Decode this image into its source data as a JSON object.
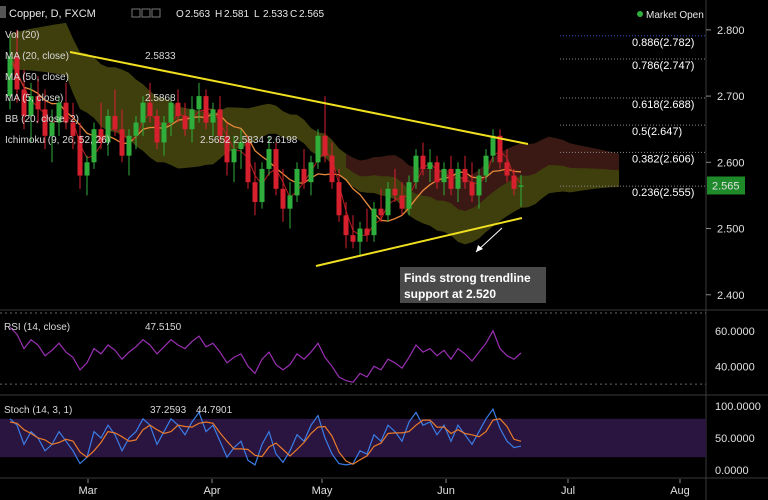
{
  "header": {
    "symbol": "Copper, D, FXCM",
    "ohlc": {
      "o": "2.563",
      "h": "2.581",
      "l": "2.533",
      "c": "2.565"
    },
    "market_status": "Market Open"
  },
  "indicator_labels": [
    {
      "label": "Vol (20)",
      "value": ""
    },
    {
      "label": "MA (20, close)",
      "value": "2.5833"
    },
    {
      "label": "MA (50, close)",
      "value": ""
    },
    {
      "label": "MA (5, close)",
      "value": "2.5868"
    },
    {
      "label": "BB (20, close, 2)",
      "value": ""
    },
    {
      "label": "Ichimoku (9, 26, 52, 26)",
      "value": "2.5652   2.5834   2.6198"
    }
  ],
  "annotation": {
    "line1": "Finds strong trendline",
    "line2": "support at 2.520"
  },
  "fib_levels": [
    {
      "label": "0.886(2.782)",
      "price": 2.782
    },
    {
      "label": "0.786(2.747)",
      "price": 2.747
    },
    {
      "label": "0.618(2.688)",
      "price": 2.688
    },
    {
      "label": "0.5(2.647)",
      "price": 2.647
    },
    {
      "label": "0.382(2.606)",
      "price": 2.606
    },
    {
      "label": "0.236(2.555)",
      "price": 2.555
    }
  ],
  "rsi": {
    "label": "RSI (14, close)",
    "value": "47.5150",
    "ticks": [
      "60.0000",
      "40.0000"
    ]
  },
  "stoch": {
    "label": "Stoch (14, 3, 1)",
    "k": "37.2593",
    "d": "44.7901",
    "ticks": [
      "100.0000",
      "50.0000",
      "0.0000"
    ]
  },
  "colors": {
    "bull": "#2fae3b",
    "bear": "#d7202e",
    "trend": "#f0e020",
    "ma": "#e8883a",
    "rsi": "#9a2fb3",
    "k": "#3a7de6",
    "d": "#e87a2a",
    "cloud_bull": "#4a4a10",
    "cloud_bear": "#3a1414",
    "price_badge": "#1e8a2a"
  },
  "chart_data": {
    "type": "candlestick",
    "x_labels": [
      "Mar",
      "Apr",
      "May",
      "Jun",
      "Jul",
      "Aug"
    ],
    "price_ticks": [
      "2.800",
      "2.700",
      "2.600",
      "2.500",
      "2.400"
    ],
    "ylim": [
      2.38,
      2.83
    ],
    "last_price": "2.565",
    "candles": [
      [
        2.7,
        2.79,
        2.68,
        2.76
      ],
      [
        2.76,
        2.8,
        2.69,
        2.71
      ],
      [
        2.71,
        2.74,
        2.65,
        2.67
      ],
      [
        2.67,
        2.72,
        2.63,
        2.7
      ],
      [
        2.7,
        2.73,
        2.66,
        2.68
      ],
      [
        2.68,
        2.71,
        2.62,
        2.64
      ],
      [
        2.64,
        2.68,
        2.6,
        2.66
      ],
      [
        2.66,
        2.7,
        2.64,
        2.69
      ],
      [
        2.69,
        2.72,
        2.65,
        2.66
      ],
      [
        2.66,
        2.69,
        2.62,
        2.64
      ],
      [
        2.64,
        2.66,
        2.56,
        2.58
      ],
      [
        2.58,
        2.61,
        2.55,
        2.6
      ],
      [
        2.6,
        2.66,
        2.59,
        2.65
      ],
      [
        2.65,
        2.69,
        2.62,
        2.63
      ],
      [
        2.63,
        2.68,
        2.61,
        2.67
      ],
      [
        2.67,
        2.71,
        2.64,
        2.65
      ],
      [
        2.65,
        2.68,
        2.6,
        2.61
      ],
      [
        2.61,
        2.65,
        2.58,
        2.64
      ],
      [
        2.64,
        2.67,
        2.62,
        2.66
      ],
      [
        2.66,
        2.7,
        2.64,
        2.69
      ],
      [
        2.69,
        2.72,
        2.66,
        2.67
      ],
      [
        2.67,
        2.68,
        2.62,
        2.63
      ],
      [
        2.63,
        2.67,
        2.61,
        2.66
      ],
      [
        2.66,
        2.7,
        2.64,
        2.69
      ],
      [
        2.69,
        2.71,
        2.66,
        2.67
      ],
      [
        2.67,
        2.69,
        2.64,
        2.65
      ],
      [
        2.65,
        2.7,
        2.63,
        2.68
      ],
      [
        2.68,
        2.72,
        2.66,
        2.7
      ],
      [
        2.7,
        2.71,
        2.65,
        2.66
      ],
      [
        2.66,
        2.69,
        2.64,
        2.68
      ],
      [
        2.68,
        2.7,
        2.63,
        2.64
      ],
      [
        2.64,
        2.66,
        2.58,
        2.6
      ],
      [
        2.6,
        2.64,
        2.57,
        2.62
      ],
      [
        2.62,
        2.65,
        2.59,
        2.63
      ],
      [
        2.63,
        2.64,
        2.56,
        2.57
      ],
      [
        2.57,
        2.6,
        2.52,
        2.54
      ],
      [
        2.54,
        2.6,
        2.53,
        2.59
      ],
      [
        2.59,
        2.64,
        2.58,
        2.62
      ],
      [
        2.62,
        2.63,
        2.55,
        2.56
      ],
      [
        2.56,
        2.59,
        2.51,
        2.53
      ],
      [
        2.53,
        2.57,
        2.5,
        2.55
      ],
      [
        2.55,
        2.6,
        2.54,
        2.59
      ],
      [
        2.59,
        2.62,
        2.56,
        2.57
      ],
      [
        2.57,
        2.61,
        2.55,
        2.6
      ],
      [
        2.6,
        2.65,
        2.59,
        2.64
      ],
      [
        2.64,
        2.7,
        2.6,
        2.61
      ],
      [
        2.61,
        2.63,
        2.56,
        2.57
      ],
      [
        2.57,
        2.59,
        2.51,
        2.52
      ],
      [
        2.52,
        2.54,
        2.47,
        2.49
      ],
      [
        2.49,
        2.52,
        2.47,
        2.48
      ],
      [
        2.48,
        2.51,
        2.46,
        2.5
      ],
      [
        2.5,
        2.53,
        2.48,
        2.49
      ],
      [
        2.49,
        2.54,
        2.48,
        2.53
      ],
      [
        2.53,
        2.56,
        2.51,
        2.52
      ],
      [
        2.52,
        2.57,
        2.51,
        2.56
      ],
      [
        2.56,
        2.59,
        2.54,
        2.55
      ],
      [
        2.55,
        2.57,
        2.52,
        2.53
      ],
      [
        2.53,
        2.58,
        2.52,
        2.57
      ],
      [
        2.57,
        2.62,
        2.56,
        2.61
      ],
      [
        2.61,
        2.63,
        2.58,
        2.59
      ],
      [
        2.59,
        2.62,
        2.57,
        2.6
      ],
      [
        2.6,
        2.61,
        2.56,
        2.57
      ],
      [
        2.57,
        2.6,
        2.55,
        2.59
      ],
      [
        2.59,
        2.61,
        2.55,
        2.56
      ],
      [
        2.56,
        2.6,
        2.54,
        2.59
      ],
      [
        2.59,
        2.61,
        2.56,
        2.57
      ],
      [
        2.57,
        2.6,
        2.54,
        2.55
      ],
      [
        2.55,
        2.59,
        2.53,
        2.58
      ],
      [
        2.58,
        2.62,
        2.57,
        2.61
      ],
      [
        2.61,
        2.65,
        2.6,
        2.64
      ],
      [
        2.64,
        2.65,
        2.59,
        2.6
      ],
      [
        2.6,
        2.62,
        2.57,
        2.58
      ],
      [
        2.58,
        2.59,
        2.55,
        2.56
      ],
      [
        2.563,
        2.581,
        2.533,
        2.565
      ]
    ],
    "rsi_values": [
      62,
      58,
      50,
      55,
      52,
      46,
      49,
      53,
      48,
      45,
      38,
      42,
      50,
      47,
      52,
      49,
      44,
      48,
      51,
      55,
      52,
      47,
      51,
      55,
      52,
      50,
      54,
      57,
      51,
      53,
      48,
      42,
      45,
      47,
      40,
      36,
      44,
      48,
      41,
      38,
      41,
      47,
      44,
      48,
      53,
      45,
      40,
      34,
      32,
      31,
      36,
      34,
      40,
      38,
      44,
      42,
      39,
      45,
      52,
      48,
      50,
      46,
      49,
      44,
      50,
      47,
      43,
      48,
      53,
      60,
      50,
      46,
      44,
      47.5
    ],
    "stoch_k": [
      80,
      70,
      40,
      60,
      50,
      30,
      40,
      60,
      45,
      30,
      10,
      20,
      60,
      50,
      70,
      55,
      30,
      50,
      60,
      80,
      70,
      40,
      60,
      80,
      70,
      55,
      75,
      90,
      60,
      70,
      45,
      20,
      35,
      45,
      15,
      8,
      40,
      60,
      25,
      12,
      30,
      55,
      45,
      70,
      85,
      50,
      25,
      10,
      8,
      10,
      30,
      25,
      55,
      45,
      70,
      60,
      45,
      75,
      90,
      70,
      75,
      55,
      70,
      45,
      70,
      55,
      40,
      60,
      80,
      95,
      65,
      45,
      35,
      37.3
    ],
    "stoch_d": [
      75,
      73,
      63,
      57,
      50,
      47,
      40,
      43,
      48,
      45,
      28,
      20,
      30,
      43,
      60,
      58,
      52,
      45,
      47,
      63,
      70,
      63,
      57,
      60,
      70,
      68,
      67,
      73,
      75,
      73,
      58,
      45,
      33,
      33,
      32,
      23,
      21,
      36,
      42,
      32,
      22,
      32,
      43,
      57,
      67,
      68,
      53,
      28,
      14,
      9,
      16,
      22,
      37,
      42,
      57,
      58,
      58,
      60,
      70,
      78,
      78,
      67,
      67,
      57,
      63,
      57,
      55,
      52,
      60,
      78,
      80,
      68,
      48,
      44.8
    ]
  }
}
